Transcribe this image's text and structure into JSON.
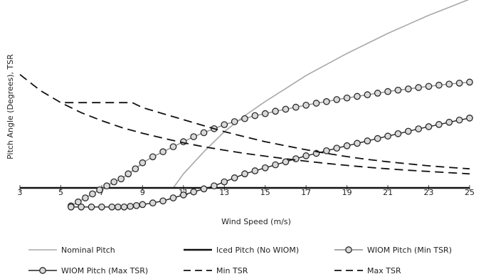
{
  "chart_data": {
    "type": "line",
    "title": "",
    "xlabel": "Wind Speed (m/s)",
    "ylabel": "Pitch Angle (Degrees), TSR",
    "xlim": [
      3,
      25
    ],
    "ylim": [
      -1.2,
      9.5
    ],
    "x_ticks": [
      "3",
      "5",
      "7",
      "9",
      "11",
      "13",
      "15",
      "17",
      "19",
      "21",
      "23",
      "25"
    ],
    "grid": false,
    "legend_position": "bottom",
    "series": [
      {
        "name": "Nominal Pitch",
        "style": "solid-gray",
        "color": "#a8a8a8",
        "x": [
          10.5,
          11,
          12,
          13,
          14,
          15,
          16,
          17,
          18,
          19,
          20,
          21,
          22,
          23,
          24,
          25
        ],
        "y": [
          0.0,
          0.7,
          1.8,
          2.8,
          3.6,
          4.3,
          4.95,
          5.6,
          6.15,
          6.7,
          7.2,
          7.7,
          8.15,
          8.6,
          9.0,
          9.4
        ]
      },
      {
        "name": "Iced Pitch (No WIOM)",
        "style": "solid-black",
        "color": "#111111",
        "x": [
          3,
          25
        ],
        "y": [
          0,
          0
        ]
      },
      {
        "name": "WIOM Pitch (Min TSR)",
        "style": "solid-gray-circles",
        "color": "#8a8a8a",
        "x": [
          5.5,
          5.85,
          6.2,
          6.55,
          6.9,
          7.25,
          7.6,
          7.95,
          8.3,
          8.65,
          9.0,
          9.5,
          10.0,
          10.5,
          11.0,
          11.5,
          12.0,
          12.5,
          13.0,
          13.5,
          14.0,
          14.5,
          15.0,
          15.5,
          16.0,
          16.5,
          17.0,
          17.5,
          18.0,
          18.5,
          19.0,
          19.5,
          20.0,
          20.5,
          21.0,
          21.5,
          22.0,
          22.5,
          23.0,
          23.5,
          24.0,
          24.5,
          25.0
        ],
        "y": [
          -0.9,
          -0.7,
          -0.5,
          -0.3,
          -0.1,
          0.1,
          0.3,
          0.45,
          0.7,
          0.95,
          1.25,
          1.55,
          1.8,
          2.05,
          2.3,
          2.55,
          2.75,
          2.95,
          3.15,
          3.3,
          3.45,
          3.6,
          3.7,
          3.82,
          3.92,
          4.02,
          4.12,
          4.22,
          4.3,
          4.4,
          4.48,
          4.56,
          4.64,
          4.72,
          4.8,
          4.87,
          4.93,
          5.0,
          5.06,
          5.12,
          5.17,
          5.22,
          5.27
        ]
      },
      {
        "name": "WIOM Pitch (Max TSR)",
        "style": "solid-black-circles",
        "color": "#111111",
        "x": [
          5.5,
          6.0,
          6.5,
          7.0,
          7.5,
          7.8,
          8.1,
          8.4,
          8.7,
          9.0,
          9.5,
          10.0,
          10.5,
          11.0,
          11.5,
          12.0,
          12.5,
          13.0,
          13.5,
          14.0,
          14.5,
          15.0,
          15.5,
          16.0,
          16.5,
          17.0,
          17.5,
          18.0,
          18.5,
          19.0,
          19.5,
          20.0,
          20.5,
          21.0,
          21.5,
          22.0,
          22.5,
          23.0,
          23.5,
          24.0,
          24.5,
          25.0
        ],
        "y": [
          -0.95,
          -0.95,
          -0.95,
          -0.95,
          -0.95,
          -0.95,
          -0.95,
          -0.92,
          -0.88,
          -0.83,
          -0.75,
          -0.65,
          -0.5,
          -0.35,
          -0.2,
          -0.05,
          0.1,
          0.3,
          0.5,
          0.7,
          0.85,
          1.0,
          1.15,
          1.3,
          1.45,
          1.6,
          1.72,
          1.85,
          1.98,
          2.1,
          2.22,
          2.34,
          2.46,
          2.58,
          2.7,
          2.82,
          2.94,
          3.05,
          3.16,
          3.27,
          3.38,
          3.48
        ]
      },
      {
        "name": "Min TSR",
        "style": "dashed-black",
        "color": "#111111",
        "x": [
          3,
          4,
          5,
          6,
          7,
          8,
          9,
          10,
          11,
          12,
          13,
          14,
          15,
          16,
          17,
          18,
          19,
          20,
          21,
          22,
          23,
          24,
          25
        ],
        "y": [
          5.65,
          4.85,
          4.25,
          3.75,
          3.35,
          3.0,
          2.72,
          2.48,
          2.25,
          2.05,
          1.88,
          1.72,
          1.58,
          1.45,
          1.33,
          1.22,
          1.12,
          1.03,
          0.95,
          0.88,
          0.82,
          0.76,
          0.7
        ]
      },
      {
        "name": "Max TSR",
        "style": "dashed-black",
        "color": "#111111",
        "x": [
          5.2,
          8.5,
          9.0,
          10,
          11,
          12,
          13,
          14,
          15,
          16,
          17,
          18,
          19,
          20,
          21,
          22,
          23,
          24,
          25
        ],
        "y": [
          4.25,
          4.25,
          4.0,
          3.7,
          3.4,
          3.1,
          2.8,
          2.55,
          2.3,
          2.1,
          1.9,
          1.72,
          1.56,
          1.42,
          1.3,
          1.2,
          1.1,
          1.02,
          0.95
        ]
      }
    ]
  }
}
